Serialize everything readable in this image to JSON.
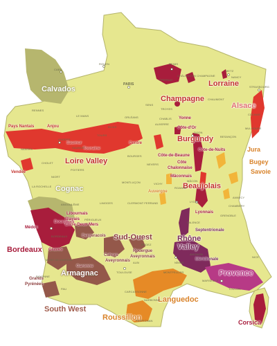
{
  "colors": {
    "land": "#e6e78f",
    "land_stroke": "#b3b36a",
    "calvados": "#b6b66e",
    "cognac": "#b6b66e",
    "red_dark": "#a81d3c",
    "red": "#e0382e",
    "orange": "#e68a26",
    "purple": "#7f2a5c",
    "magenta": "#b73a86",
    "brown": "#94584a",
    "yellow_orange": "#f2b53a",
    "label_red": "#c2312c",
    "label_brown": "#8b3b3b",
    "label_pink": "#e07070",
    "label_orange": "#d9832a",
    "label_purple": "#7a2b5a"
  },
  "regions": {
    "calvados": "Calvados",
    "champagne": "Champagne",
    "lorraine": "Lorraine",
    "alsace": "Alsace",
    "burgundy": "Burgundy",
    "jura": "Jura",
    "bugey": "Bugey",
    "savoie": "Savoie",
    "beaujolais": "Beaujolais",
    "loire_valley": "Loire Valley",
    "cognac": "Cognac",
    "bordeaux": "Bordeaux",
    "armagnac": "Armagnac",
    "sud_ouest": "Sud-Ouest",
    "rhone_valley_1": "Rhône",
    "rhone_valley_2": "Valley",
    "provence": "Provence",
    "languedoc": "Languedoc",
    "roussillon": "Roussillon",
    "south_west": "South West",
    "corsica": "Corsica"
  },
  "subregions": {
    "pays_nantais": "Pays Nantais",
    "anjou": "Anjou",
    "saumur": "Saumur",
    "touraine": "Touraine",
    "centre": "Centre",
    "vendee": "Vendée",
    "yonne": "Yonne",
    "cote_dor": "Côte-d'Or",
    "cote_de_nuits": "Côte-de-Nuits",
    "cote_de_beaune": "Côte-de-Beaune",
    "cote_chalonnaise_1": "Côte",
    "cote_chalonnaise_2": "Chalonnaise",
    "maconnais": "Mâconnais",
    "auvergne": "Auvergne",
    "lyonnais": "Lyonnais",
    "septentrionale": "Septentrionale",
    "meridionale": "Méridionale",
    "libournais": "Libournais",
    "bourgeais": "Bourgeais",
    "blayais": "Blayais",
    "entre_deux_mers": "Entre-Deux-Mers",
    "medoc": "Médoc",
    "graves": "Graves",
    "bergeracois": "Bergeracois",
    "garonne": "Garonne",
    "cahors": "Cahors",
    "aveyronnais": "Aveyronnais",
    "rouergue_1": "Rouergue",
    "rouergue_2": "Aveyronnais",
    "grands_pyrenees_1": "Grands",
    "grands_pyrenees_2": "Pyrénées"
  },
  "cities": {
    "caen": "CAEN",
    "rouen": "ROUEN",
    "reims": "REIMS",
    "paris": "PARIS",
    "metz": "METZ",
    "strasbourg": "STRASBOURG",
    "nancy": "NANCY",
    "troyes": "TROYES",
    "chablis": "CHABLIS",
    "chaumont": "CHAUMONT",
    "dijon": "DIJON",
    "besancon": "BESANÇON",
    "orleans": "ORLÉANS",
    "le_mans": "LE MANS",
    "rennes": "RENNES",
    "nantes": "NANTES",
    "angers": "ANGERS",
    "tours": "TOURS",
    "bourges": "BOURGES",
    "poitiers": "POITIERS",
    "nevers": "NEVERS",
    "la_rochelle": "LA ROCHELLE",
    "limoges": "LIMOGES",
    "clermont_ferrand": "CLERMONT FERRAND",
    "lyon": "LYON",
    "grenoble": "GRENOBLE",
    "annecy": "ANNECY",
    "chambery": "CHAMBÉRY",
    "macon": "MÂCON",
    "bordeaux_city": "BORDEAUX",
    "angouleme": "ANGOULÊME",
    "perigueux": "PÉRIGUEUX",
    "agen": "AGEN",
    "toulouse": "TOULOUSE",
    "montpellier": "MONTPELLIER",
    "nimes": "NÎMES",
    "avignon": "AVIGNON",
    "marseille": "MARSEILLE",
    "toulon": "TOULON",
    "nice": "NICE",
    "perpignan": "PERPIGNAN",
    "carcassonne": "CARCASSONNE",
    "narbonne": "NARBONNE",
    "pau": "PAU",
    "bayonne": "BAYONNE",
    "mont_de_marsan": "MONT DE MARSAN",
    "auch": "AUCH",
    "albi": "ALBI",
    "rodez": "RODEZ",
    "valence": "VALENCE",
    "colmar": "COLMAR",
    "mulhouse": "MULHOUSE",
    "saumur_city": "SAUMUR",
    "blois": "BLOIS",
    "cholet": "CHOLET",
    "niort": "NIORT",
    "roanne": "ROANNE",
    "vichy": "VICHY",
    "montlucon": "MONTLUÇON",
    "chalons": "CHÂLONS EN CHAMPAGNE",
    "epernay": "ÉPERNAY",
    "sens": "SENS",
    "auxerre": "AUXERRE"
  }
}
